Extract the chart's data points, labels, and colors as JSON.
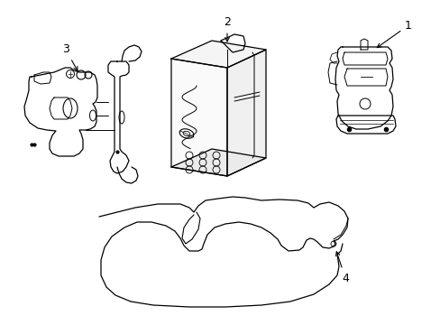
{
  "bg_color": "#ffffff",
  "line_color": "#000000",
  "lw": 0.9
}
